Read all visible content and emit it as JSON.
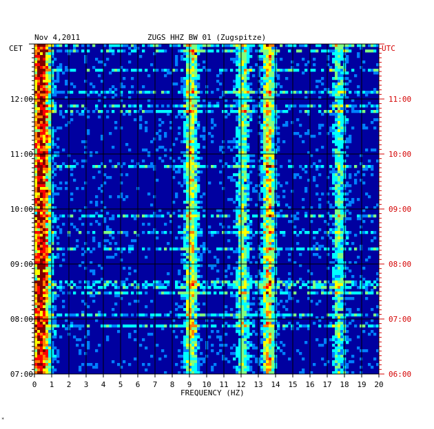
{
  "header": {
    "date": "Nov 4,2011",
    "station": "ZUGS HHZ BW 01 (Zugspitze)"
  },
  "left_axis_label": "CET",
  "right_axis_label": "UTC",
  "corner_mark": "*",
  "chart_data": {
    "type": "heatmap",
    "title": "ZUGS HHZ BW 01 (Zugspitze)",
    "subtitle": "Nov 4,2011",
    "xlabel": "FREQUENCY (HZ)",
    "ylabel_left": "CET",
    "ylabel_right": "UTC",
    "xlim": [
      0,
      20
    ],
    "x_ticks": [
      "0",
      "1",
      "2",
      "3",
      "4",
      "5",
      "6",
      "7",
      "8",
      "9",
      "10",
      "11",
      "12",
      "13",
      "14",
      "15",
      "16",
      "17",
      "18",
      "19",
      "20"
    ],
    "y_range_cet": [
      "07:00",
      "13:00"
    ],
    "y_ticks_left": [
      "12:00",
      "11:00",
      "10:00",
      "09:00",
      "08:00",
      "07:00"
    ],
    "y_ticks_right": [
      "11:00",
      "10:00",
      "09:00",
      "08:00",
      "07:00",
      "06:00"
    ],
    "grid": true,
    "colormap": [
      "#00007f",
      "#0000ff",
      "#0080ff",
      "#00ffff",
      "#80ff80",
      "#ffff00",
      "#ff8000",
      "#ff0000",
      "#7f0000"
    ],
    "background_color": "#0000a0",
    "frame_color": "#000000",
    "right_axis_color": "#d40000",
    "energy_bands_hz": [
      {
        "center": 0.4,
        "intensity": 0.85
      },
      {
        "center": 9.1,
        "intensity": 0.45
      },
      {
        "center": 13.6,
        "intensity": 0.5
      },
      {
        "center": 12.1,
        "intensity": 0.35
      },
      {
        "center": 17.7,
        "intensity": 0.3
      }
    ]
  }
}
